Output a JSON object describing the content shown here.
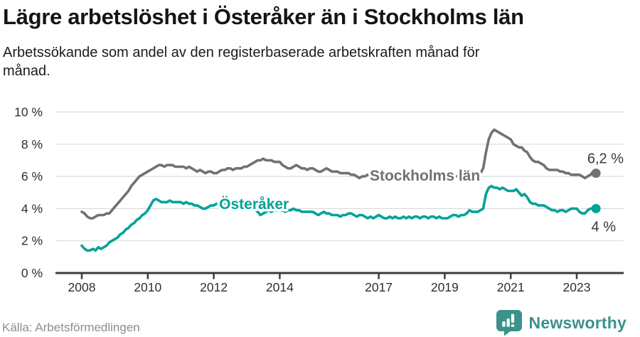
{
  "header": {
    "title": "Lägre arbetslöshet i Österåker än i Stockholms län",
    "subtitle": "Arbetssökande som andel av den registerbaserade arbetskraften månad för\nmånad."
  },
  "chart_data": {
    "type": "line",
    "unit": "percent",
    "frequency": "monthly",
    "x_start": "2008-01",
    "x_end": "2023-08",
    "ylim": [
      0,
      10
    ],
    "y_tick_labels": [
      "0 %",
      "2 %",
      "4 %",
      "6 %",
      "8 %",
      "10 %"
    ],
    "x_ticks": [
      2008,
      2010,
      2012,
      2014,
      2017,
      2019,
      2021,
      2023
    ],
    "grid": true,
    "legend_position": "inline-labels",
    "series": [
      {
        "name": "Stockholms län",
        "color": "#74706d",
        "end_label": "6,2 %",
        "end_label_position": "above",
        "label_x_year": 2018.4,
        "label_value": 6.07,
        "values": [
          3.8,
          3.7,
          3.5,
          3.4,
          3.4,
          3.5,
          3.6,
          3.6,
          3.6,
          3.7,
          3.7,
          3.9,
          4.1,
          4.3,
          4.5,
          4.7,
          4.9,
          5.1,
          5.4,
          5.6,
          5.8,
          6.0,
          6.1,
          6.2,
          6.3,
          6.4,
          6.5,
          6.6,
          6.7,
          6.7,
          6.6,
          6.7,
          6.7,
          6.7,
          6.6,
          6.6,
          6.6,
          6.6,
          6.5,
          6.6,
          6.5,
          6.4,
          6.3,
          6.4,
          6.3,
          6.2,
          6.3,
          6.3,
          6.2,
          6.2,
          6.3,
          6.4,
          6.4,
          6.5,
          6.5,
          6.4,
          6.5,
          6.5,
          6.5,
          6.6,
          6.6,
          6.7,
          6.8,
          6.9,
          7.0,
          7.0,
          7.1,
          7.0,
          7.0,
          7.0,
          6.9,
          6.9,
          6.9,
          6.7,
          6.6,
          6.5,
          6.5,
          6.6,
          6.7,
          6.6,
          6.5,
          6.5,
          6.4,
          6.5,
          6.5,
          6.4,
          6.3,
          6.3,
          6.4,
          6.5,
          6.4,
          6.3,
          6.3,
          6.3,
          6.2,
          6.2,
          6.2,
          6.2,
          6.1,
          6.1,
          6.0,
          5.9,
          6.0,
          6.0,
          6.1,
          6.0,
          6.0,
          6.0,
          6.0,
          6.0,
          5.9,
          5.9,
          5.9,
          6.0,
          6.0,
          5.9,
          5.9,
          5.9,
          5.8,
          5.9,
          5.9,
          5.8,
          5.8,
          5.8,
          5.8,
          5.9,
          5.9,
          5.8,
          5.8,
          5.8,
          5.8,
          5.9,
          5.9,
          5.9,
          5.9,
          5.9,
          6.0,
          6.0,
          6.1,
          6.0,
          6.0,
          6.0,
          6.0,
          6.1,
          6.1,
          6.2,
          6.5,
          7.5,
          8.3,
          8.7,
          8.9,
          8.8,
          8.7,
          8.6,
          8.5,
          8.4,
          8.3,
          8.0,
          7.9,
          7.8,
          7.8,
          7.6,
          7.5,
          7.2,
          7.0,
          6.9,
          6.9,
          6.8,
          6.7,
          6.5,
          6.4,
          6.4,
          6.4,
          6.4,
          6.3,
          6.3,
          6.2,
          6.2,
          6.1,
          6.1,
          6.1,
          6.1,
          6.0,
          5.9,
          6.0,
          6.1,
          6.3,
          6.2
        ]
      },
      {
        "name": "Österåker",
        "color": "#00a396",
        "end_label": "4 %",
        "end_label_position": "below",
        "label_x_year": 2013.22,
        "label_value": 4.3,
        "values": [
          1.7,
          1.5,
          1.4,
          1.4,
          1.5,
          1.4,
          1.6,
          1.5,
          1.6,
          1.7,
          1.9,
          2.0,
          2.1,
          2.2,
          2.4,
          2.5,
          2.7,
          2.8,
          3.0,
          3.1,
          3.3,
          3.4,
          3.6,
          3.7,
          3.9,
          4.2,
          4.5,
          4.6,
          4.5,
          4.4,
          4.4,
          4.4,
          4.5,
          4.4,
          4.4,
          4.4,
          4.4,
          4.3,
          4.4,
          4.3,
          4.3,
          4.2,
          4.2,
          4.1,
          4.0,
          4.0,
          4.1,
          4.2,
          4.2,
          4.3,
          4.3,
          4.4,
          4.3,
          4.3,
          4.2,
          4.2,
          4.1,
          4.2,
          4.1,
          4.1,
          4.1,
          4.0,
          4.0,
          3.9,
          3.8,
          3.6,
          3.7,
          3.8,
          3.9,
          3.8,
          3.9,
          3.9,
          3.9,
          3.9,
          3.8,
          3.9,
          3.9,
          4.0,
          3.9,
          3.9,
          3.8,
          3.8,
          3.8,
          3.8,
          3.8,
          3.7,
          3.6,
          3.7,
          3.8,
          3.7,
          3.7,
          3.6,
          3.6,
          3.6,
          3.5,
          3.6,
          3.6,
          3.7,
          3.7,
          3.6,
          3.5,
          3.6,
          3.6,
          3.5,
          3.4,
          3.5,
          3.4,
          3.5,
          3.6,
          3.5,
          3.4,
          3.4,
          3.5,
          3.4,
          3.5,
          3.4,
          3.4,
          3.5,
          3.4,
          3.5,
          3.4,
          3.5,
          3.5,
          3.4,
          3.5,
          3.5,
          3.4,
          3.5,
          3.5,
          3.4,
          3.5,
          3.4,
          3.4,
          3.4,
          3.5,
          3.6,
          3.6,
          3.5,
          3.6,
          3.6,
          3.7,
          3.9,
          3.8,
          3.8,
          3.8,
          3.9,
          4.0,
          4.9,
          5.3,
          5.4,
          5.3,
          5.3,
          5.2,
          5.3,
          5.2,
          5.1,
          5.1,
          5.1,
          5.2,
          5.0,
          4.8,
          4.9,
          4.7,
          4.4,
          4.3,
          4.3,
          4.2,
          4.2,
          4.2,
          4.1,
          4.0,
          3.9,
          3.9,
          3.8,
          3.9,
          3.9,
          3.8,
          3.9,
          4.0,
          4.0,
          4.0,
          3.8,
          3.7,
          3.7,
          3.9,
          4.0,
          4.0,
          4.0
        ]
      }
    ]
  },
  "footer": {
    "source": "Källa: Arbetsförmedlingen",
    "brand": "Newsworthy",
    "brand_color": "#3c918b"
  }
}
